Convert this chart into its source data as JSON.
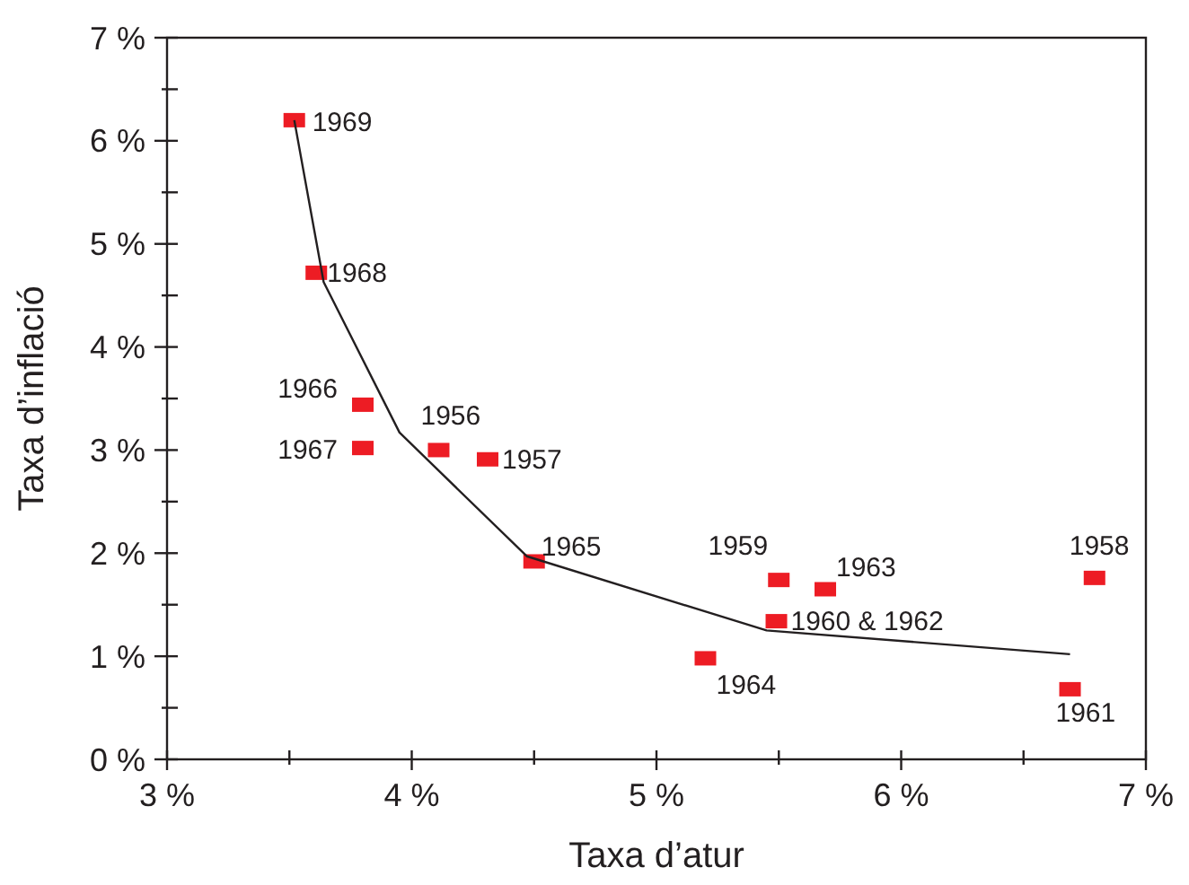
{
  "chart_data": {
    "type": "scatter",
    "xlabel": "Taxa d’atur",
    "ylabel": "Taxa d’inflació",
    "xlim": [
      3,
      7
    ],
    "ylim": [
      0,
      7
    ],
    "xticks": [
      {
        "value": 3,
        "label": "3 %"
      },
      {
        "value": 3.5,
        "label": null
      },
      {
        "value": 4,
        "label": "4 %"
      },
      {
        "value": 4.5,
        "label": null
      },
      {
        "value": 5,
        "label": "5 %"
      },
      {
        "value": 5.5,
        "label": null
      },
      {
        "value": 6,
        "label": "6 %"
      },
      {
        "value": 6.5,
        "label": null
      },
      {
        "value": 7,
        "label": "7 %"
      }
    ],
    "yticks": [
      {
        "value": 0,
        "label": "0 %"
      },
      {
        "value": 0.5,
        "label": null
      },
      {
        "value": 1,
        "label": "1 %"
      },
      {
        "value": 1.5,
        "label": null
      },
      {
        "value": 2,
        "label": "2 %"
      },
      {
        "value": 2.5,
        "label": null
      },
      {
        "value": 3,
        "label": "3 %"
      },
      {
        "value": 3.5,
        "label": null
      },
      {
        "value": 4,
        "label": "4 %"
      },
      {
        "value": 4.5,
        "label": null
      },
      {
        "value": 5,
        "label": "5 %"
      },
      {
        "value": 5.5,
        "label": null
      },
      {
        "value": 6,
        "label": "6 %"
      },
      {
        "value": 6.5,
        "label": null
      },
      {
        "value": 7,
        "label": "7 %"
      }
    ],
    "grid": false,
    "marker": "square",
    "series": [
      {
        "color": "#ed1c24",
        "x": [
          3.52,
          3.61,
          3.8,
          3.8,
          4.11,
          4.31,
          4.5,
          5.5,
          5.69,
          5.49,
          5.2,
          6.79,
          6.69
        ],
        "values": [
          6.2,
          4.72,
          3.44,
          3.02,
          3.0,
          2.91,
          1.92,
          1.74,
          1.65,
          1.34,
          0.98,
          1.76,
          0.68
        ]
      },
      {
        "type": "line",
        "color": "#231f20",
        "line_style": "solid",
        "marker": "none",
        "x": [
          3.52,
          3.64,
          3.95,
          4.47,
          5.45,
          6.69
        ],
        "values": [
          6.2,
          4.63,
          3.17,
          1.97,
          1.25,
          1.02
        ]
      }
    ],
    "annotations": [
      {
        "text": "1969",
        "x": 3.52,
        "y": 6.2
      },
      {
        "text": "1968",
        "x": 3.61,
        "y": 4.72
      },
      {
        "text": "1966",
        "x": 3.8,
        "y": 3.44
      },
      {
        "text": "1967",
        "x": 3.8,
        "y": 3.02
      },
      {
        "text": "1956",
        "x": 4.11,
        "y": 3.0
      },
      {
        "text": "1957",
        "x": 4.31,
        "y": 2.91
      },
      {
        "text": "1965",
        "x": 4.5,
        "y": 1.92
      },
      {
        "text": "1959",
        "x": 5.5,
        "y": 1.74
      },
      {
        "text": "1963",
        "x": 5.69,
        "y": 1.65
      },
      {
        "text": "1960 & 1962",
        "x": 5.49,
        "y": 1.34
      },
      {
        "text": "1964",
        "x": 5.2,
        "y": 0.98
      },
      {
        "text": "1958",
        "x": 6.79,
        "y": 1.76
      },
      {
        "text": "1961",
        "x": 6.69,
        "y": 0.68
      }
    ]
  }
}
